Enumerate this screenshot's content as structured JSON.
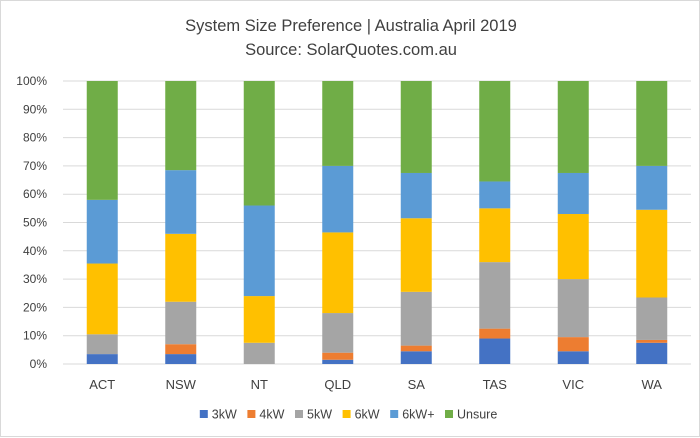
{
  "chart_data": {
    "type": "bar",
    "stacked": true,
    "title": "System Size Preference  | Australia April 2019",
    "subtitle": "Source: SolarQuotes.com.au",
    "xlabel": "",
    "ylabel": "",
    "ylim": [
      0,
      100
    ],
    "y_ticks": [
      "0%",
      "10%",
      "20%",
      "30%",
      "40%",
      "50%",
      "60%",
      "70%",
      "80%",
      "90%",
      "100%"
    ],
    "grid": true,
    "legend_position": "bottom",
    "categories": [
      "ACT",
      "NSW",
      "NT",
      "QLD",
      "SA",
      "TAS",
      "VIC",
      "WA"
    ],
    "series": [
      {
        "name": "3kW",
        "color": "#4472c4",
        "values": [
          3.5,
          3.5,
          0,
          1.5,
          4.5,
          9,
          4.5,
          7.5
        ]
      },
      {
        "name": "4kW",
        "color": "#ed7d31",
        "values": [
          0,
          3.5,
          0,
          2.5,
          2,
          3.5,
          5,
          1
        ]
      },
      {
        "name": "5kW",
        "color": "#a5a5a5",
        "values": [
          7,
          15,
          7.5,
          14,
          19,
          23.5,
          20.5,
          15
        ]
      },
      {
        "name": "6kW",
        "color": "#ffc000",
        "values": [
          25,
          24,
          16.5,
          28.5,
          26,
          19,
          23,
          31
        ]
      },
      {
        "name": "6kW+",
        "color": "#5b9bd5",
        "values": [
          22.5,
          22.5,
          32,
          23.5,
          16,
          9.5,
          14.5,
          15.5
        ]
      },
      {
        "name": "Unsure",
        "color": "#70ad47",
        "values": [
          42,
          31.5,
          44,
          30,
          32.5,
          35.5,
          32.5,
          30
        ]
      }
    ]
  }
}
